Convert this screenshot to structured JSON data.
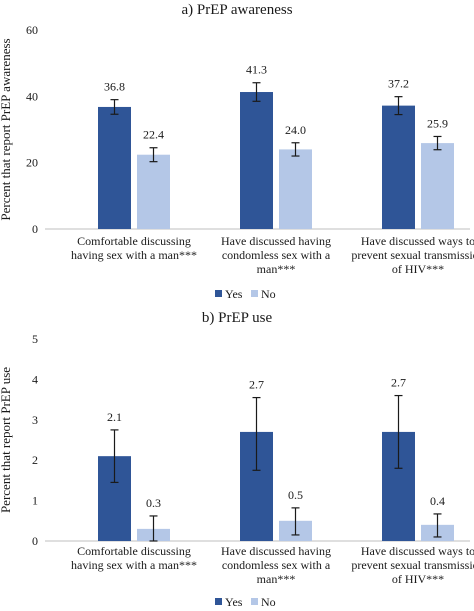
{
  "colors": {
    "yes": "#2f5597",
    "no": "#b4c7e7",
    "axis": "#bfbfbf",
    "error": "#1a1a1a"
  },
  "chart_data": [
    {
      "type": "bar",
      "title": "a) PrEP awareness",
      "ylabel": "Percent that report PrEP awareness",
      "ylim": [
        0,
        60
      ],
      "yticks": [
        0,
        20,
        40,
        60
      ],
      "categories": [
        [
          "Comfortable discussing",
          "having sex with a man***"
        ],
        [
          "Have discussed having",
          "condomless sex with a",
          "man***"
        ],
        [
          "Have discussed ways to",
          "prevent sexual transmission",
          "of HIV***"
        ]
      ],
      "series": [
        {
          "name": "Yes",
          "values": [
            36.8,
            41.3,
            37.2
          ],
          "labels": [
            "36.8",
            "41.3",
            "37.2"
          ],
          "err_low": [
            34.6,
            38.5,
            34.5
          ],
          "err_high": [
            39.0,
            44.1,
            39.9
          ]
        },
        {
          "name": "No",
          "values": [
            22.4,
            24.0,
            25.9
          ],
          "labels": [
            "22.4",
            "24.0",
            "25.9"
          ],
          "err_low": [
            20.3,
            22.0,
            23.9
          ],
          "err_high": [
            24.5,
            26.0,
            27.9
          ]
        }
      ],
      "legend": "bottom-center"
    },
    {
      "type": "bar",
      "title": "b) PrEP use",
      "ylabel": "Percent that report PrEP use",
      "ylim": [
        0,
        5
      ],
      "yticks": [
        0,
        1,
        2,
        3,
        4,
        5
      ],
      "categories": [
        [
          "Comfortable discussing",
          "having sex with a man***"
        ],
        [
          "Have discussed having",
          "condomless sex with a",
          "man***"
        ],
        [
          "Have discussed ways to",
          "prevent sexual transmission",
          "of HIV***"
        ]
      ],
      "series": [
        {
          "name": "Yes",
          "values": [
            2.1,
            2.7,
            2.7
          ],
          "labels": [
            "2.1",
            "2.7",
            "2.7"
          ],
          "err_low": [
            1.45,
            1.75,
            1.8
          ],
          "err_high": [
            2.75,
            3.55,
            3.6
          ]
        },
        {
          "name": "No",
          "values": [
            0.3,
            0.5,
            0.4
          ],
          "labels": [
            "0.3",
            "0.5",
            "0.4"
          ],
          "err_low": [
            0.0,
            0.15,
            0.1
          ],
          "err_high": [
            0.62,
            0.82,
            0.67
          ]
        }
      ],
      "legend": "bottom-center"
    }
  ]
}
